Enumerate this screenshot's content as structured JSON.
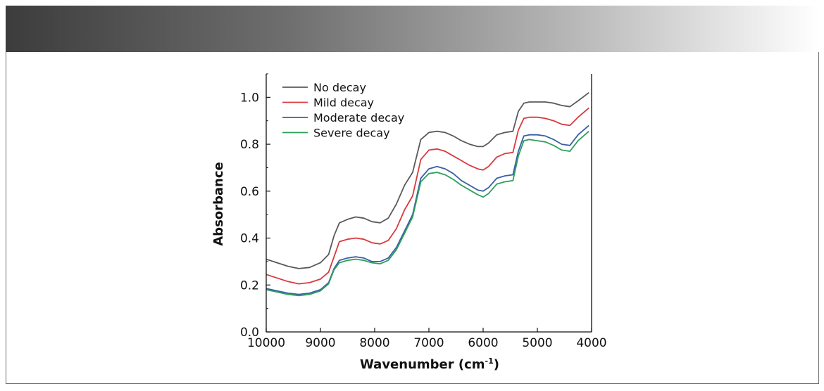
{
  "chart_data": {
    "type": "line",
    "title": "",
    "xlabel": "Wavenumber (cm",
    "xlabel_sup": "-1",
    "xlabel_close": ")",
    "ylabel": "Absorbance",
    "xlim": [
      10000,
      4000
    ],
    "ylim": [
      0.0,
      1.1
    ],
    "x_ticks": [
      10000,
      9000,
      8000,
      7000,
      6000,
      5000,
      4000
    ],
    "x_tick_labels": [
      "10000",
      "9000",
      "8000",
      "7000",
      "6000",
      "5000",
      "4000"
    ],
    "y_ticks": [
      0.0,
      0.2,
      0.4,
      0.6,
      0.8,
      1.0
    ],
    "y_tick_labels": [
      "0.0",
      "0.2",
      "0.4",
      "0.6",
      "0.8",
      "1.0"
    ],
    "legend_position": "top-left",
    "x": [
      10000,
      9800,
      9600,
      9400,
      9200,
      9000,
      8850,
      8750,
      8650,
      8500,
      8350,
      8200,
      8050,
      7900,
      7750,
      7600,
      7450,
      7300,
      7150,
      7000,
      6850,
      6700,
      6550,
      6400,
      6250,
      6100,
      6000,
      5900,
      5750,
      5600,
      5450,
      5350,
      5250,
      5150,
      5000,
      4850,
      4700,
      4550,
      4400,
      4250,
      4050
    ],
    "series": [
      {
        "name": "No decay",
        "color": "#5a5a5a",
        "values": [
          0.31,
          0.295,
          0.28,
          0.27,
          0.275,
          0.295,
          0.33,
          0.41,
          0.465,
          0.48,
          0.49,
          0.485,
          0.47,
          0.465,
          0.485,
          0.545,
          0.625,
          0.68,
          0.82,
          0.85,
          0.855,
          0.85,
          0.835,
          0.815,
          0.8,
          0.79,
          0.79,
          0.805,
          0.84,
          0.85,
          0.855,
          0.94,
          0.975,
          0.98,
          0.98,
          0.98,
          0.975,
          0.965,
          0.96,
          0.985,
          1.02
        ]
      },
      {
        "name": "Mild decay",
        "color": "#d9393d",
        "values": [
          0.245,
          0.23,
          0.215,
          0.205,
          0.21,
          0.225,
          0.255,
          0.32,
          0.385,
          0.395,
          0.4,
          0.395,
          0.38,
          0.375,
          0.39,
          0.44,
          0.52,
          0.58,
          0.735,
          0.775,
          0.78,
          0.77,
          0.75,
          0.73,
          0.71,
          0.695,
          0.69,
          0.705,
          0.745,
          0.76,
          0.765,
          0.86,
          0.91,
          0.915,
          0.915,
          0.91,
          0.9,
          0.885,
          0.88,
          0.915,
          0.955
        ]
      },
      {
        "name": "Moderate decay",
        "color": "#3a5ea8",
        "values": [
          0.185,
          0.175,
          0.165,
          0.16,
          0.165,
          0.18,
          0.21,
          0.27,
          0.305,
          0.315,
          0.32,
          0.315,
          0.3,
          0.3,
          0.315,
          0.36,
          0.43,
          0.5,
          0.655,
          0.695,
          0.705,
          0.695,
          0.675,
          0.645,
          0.625,
          0.605,
          0.6,
          0.615,
          0.655,
          0.665,
          0.67,
          0.77,
          0.835,
          0.84,
          0.84,
          0.835,
          0.82,
          0.8,
          0.795,
          0.84,
          0.88
        ]
      },
      {
        "name": "Severe decay",
        "color": "#2da05a",
        "values": [
          0.18,
          0.17,
          0.16,
          0.155,
          0.16,
          0.175,
          0.205,
          0.265,
          0.295,
          0.305,
          0.31,
          0.305,
          0.295,
          0.29,
          0.305,
          0.35,
          0.42,
          0.49,
          0.64,
          0.675,
          0.68,
          0.67,
          0.65,
          0.625,
          0.605,
          0.585,
          0.575,
          0.59,
          0.63,
          0.64,
          0.645,
          0.75,
          0.815,
          0.82,
          0.815,
          0.81,
          0.795,
          0.775,
          0.77,
          0.815,
          0.855
        ]
      }
    ]
  }
}
